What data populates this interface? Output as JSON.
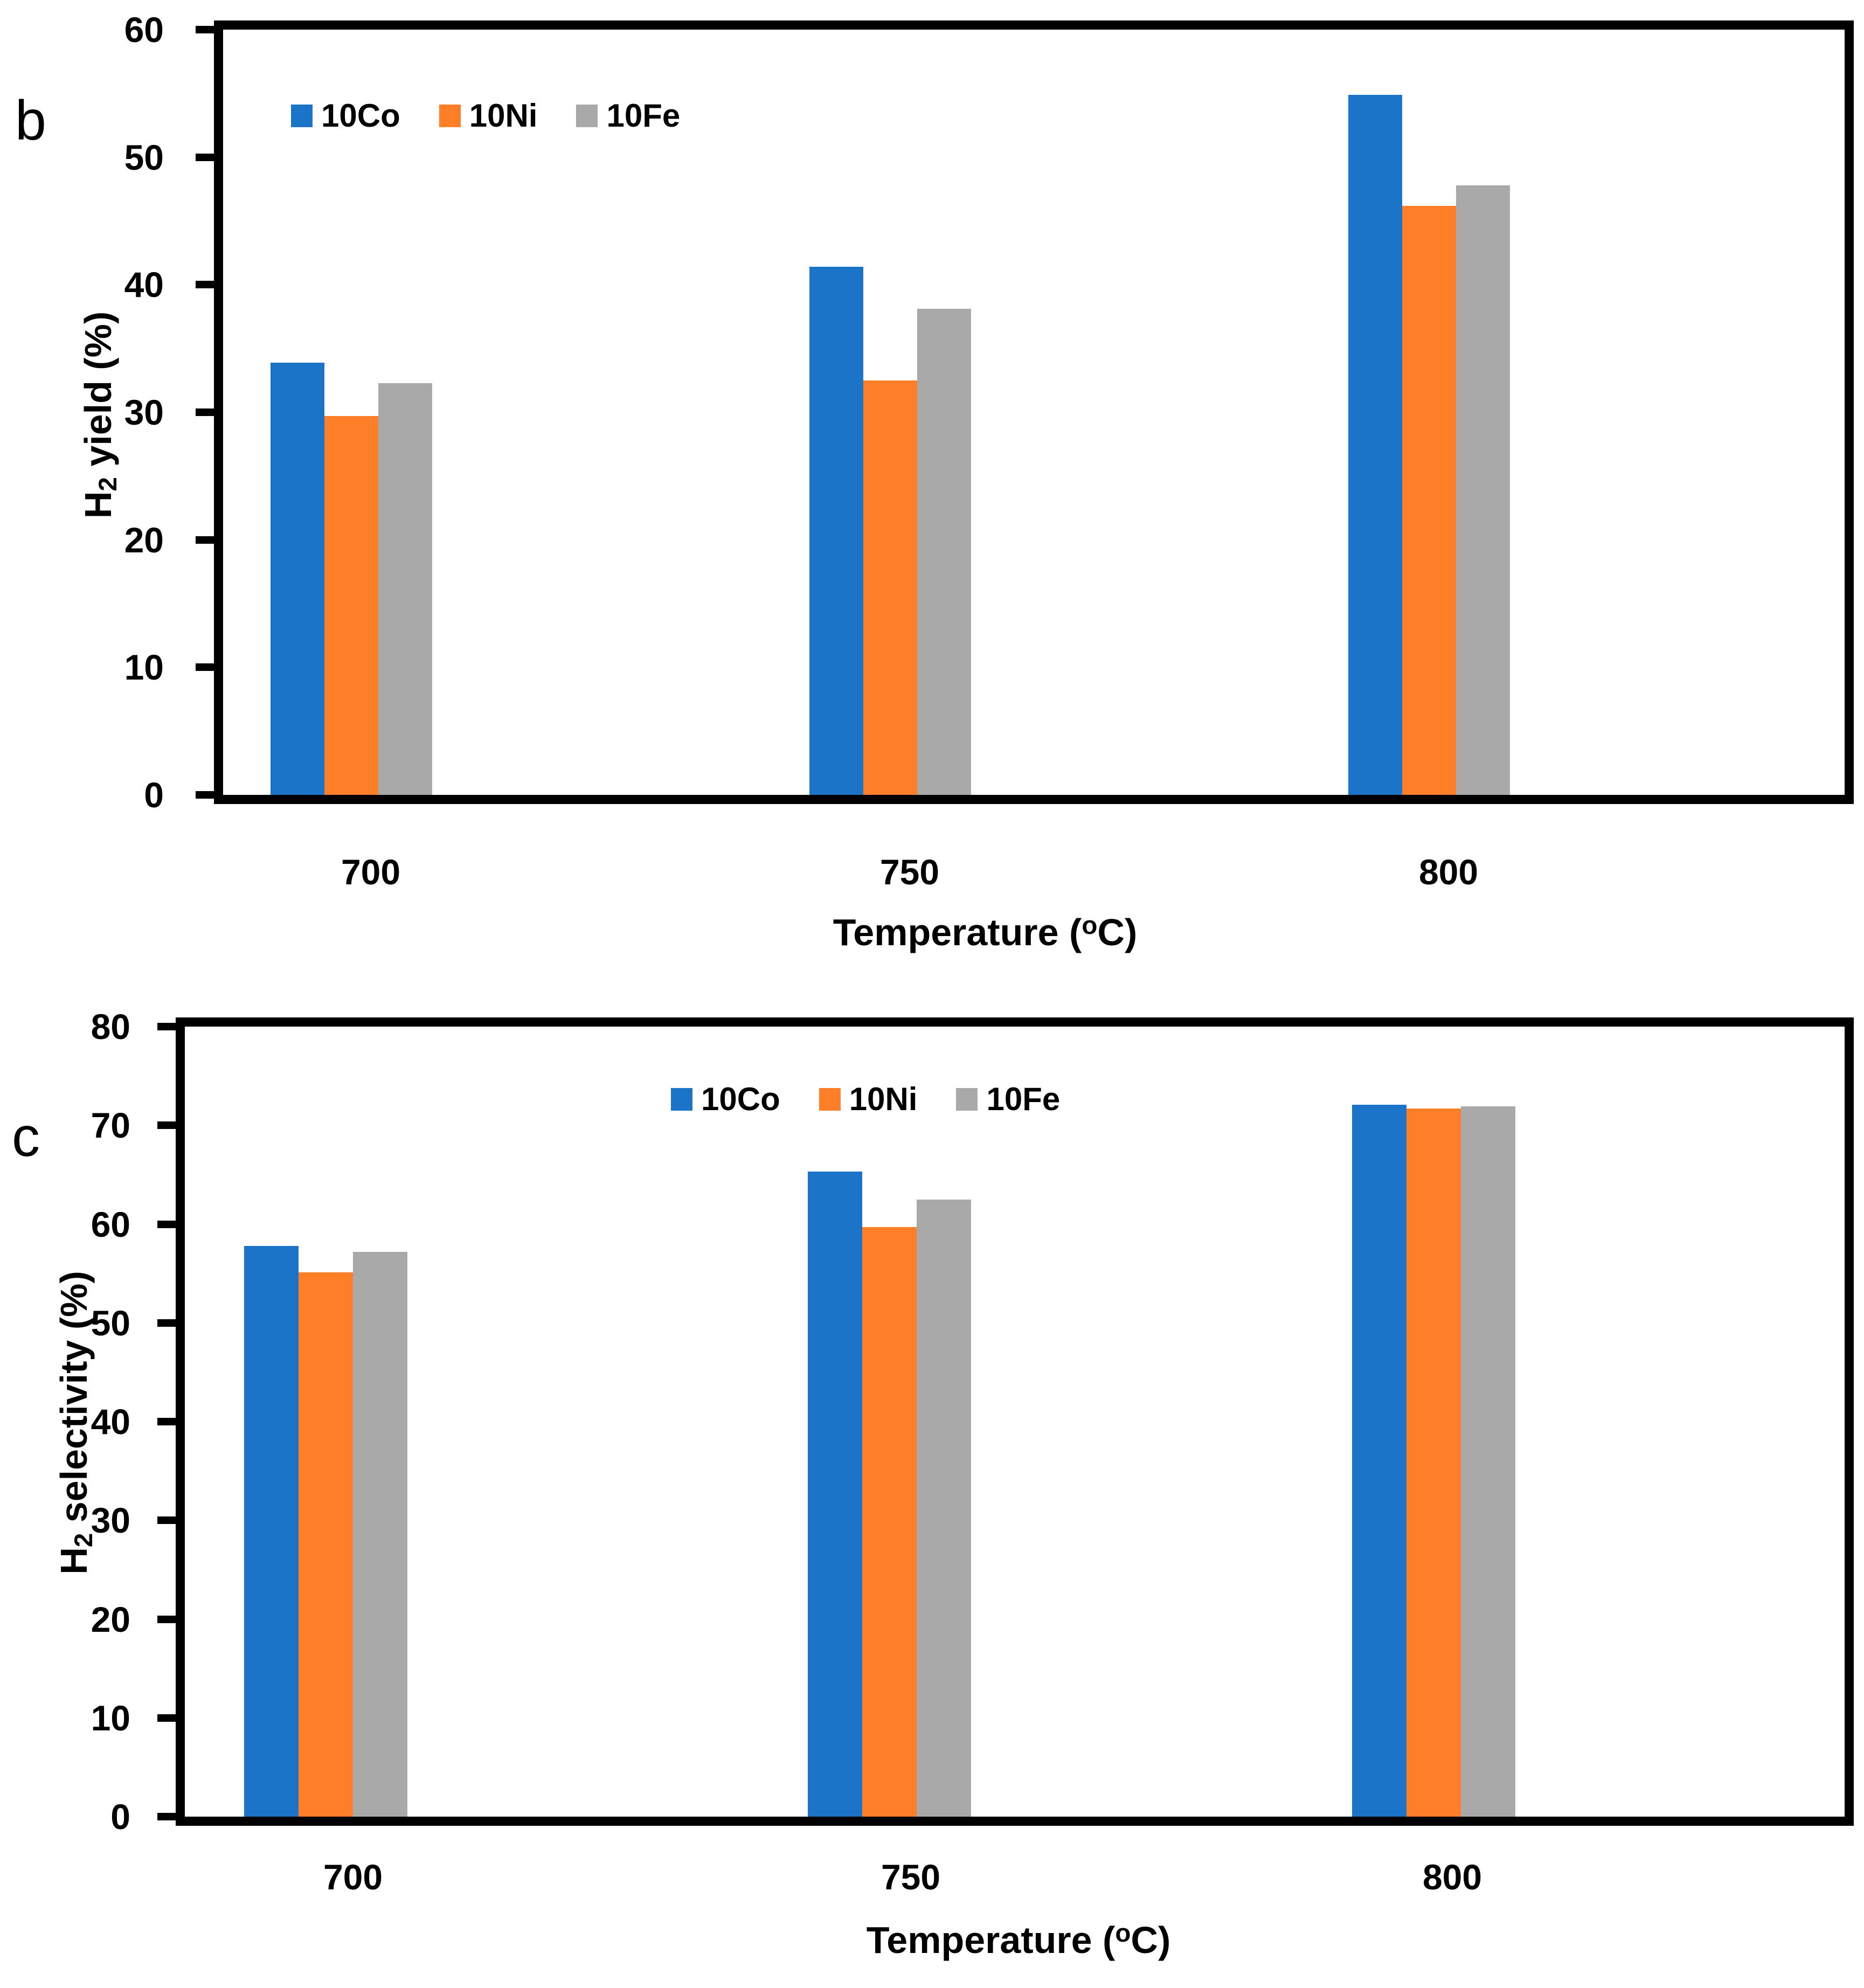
{
  "chart_data": [
    {
      "type": "bar",
      "panel_label": "b",
      "categories": [
        "700",
        "750",
        "800"
      ],
      "series": [
        {
          "name": "10Co",
          "color": "#1B74C8",
          "values": [
            33.9,
            41.4,
            54.9
          ]
        },
        {
          "name": "10Ni",
          "color": "#FF7E28",
          "values": [
            29.7,
            32.5,
            46.2
          ]
        },
        {
          "name": "10Fe",
          "color": "#A9A9A9",
          "values": [
            32.3,
            38.1,
            47.8
          ]
        }
      ],
      "xlabel": {
        "prefix": "Temperature (",
        "sup": "o",
        "suffix": "C)"
      },
      "ylabel": {
        "prefix": "H",
        "sub": "2",
        "suffix": " yield (%)"
      },
      "ylim": [
        0,
        60
      ],
      "ytick_step": 10,
      "yticks": [
        "0",
        "10",
        "20",
        "30",
        "40",
        "50",
        "60"
      ],
      "legend": {
        "position": "top-left",
        "entries": [
          "10Co",
          "10Ni",
          "10Fe"
        ]
      },
      "grid": false
    },
    {
      "type": "bar",
      "panel_label": "c",
      "categories": [
        "700",
        "750",
        "800"
      ],
      "series": [
        {
          "name": "10Co",
          "color": "#1B74C8",
          "values": [
            57.8,
            65.3,
            72.1
          ]
        },
        {
          "name": "10Ni",
          "color": "#FF7E28",
          "values": [
            55.1,
            59.7,
            71.7
          ]
        },
        {
          "name": "10Fe",
          "color": "#A9A9A9",
          "values": [
            57.2,
            62.5,
            71.9
          ]
        }
      ],
      "xlabel": {
        "prefix": "Temperature (",
        "sup": "o",
        "suffix": "C)"
      },
      "ylabel": {
        "prefix": "H",
        "sub": "2",
        "suffix": " selectivity (%)"
      },
      "ylim": [
        0,
        80
      ],
      "ytick_step": 10,
      "yticks": [
        "0",
        "10",
        "20",
        "30",
        "40",
        "50",
        "60",
        "70",
        "80"
      ],
      "legend": {
        "position": "top-center",
        "entries": [
          "10Co",
          "10Ni",
          "10Fe"
        ]
      },
      "grid": false
    }
  ]
}
